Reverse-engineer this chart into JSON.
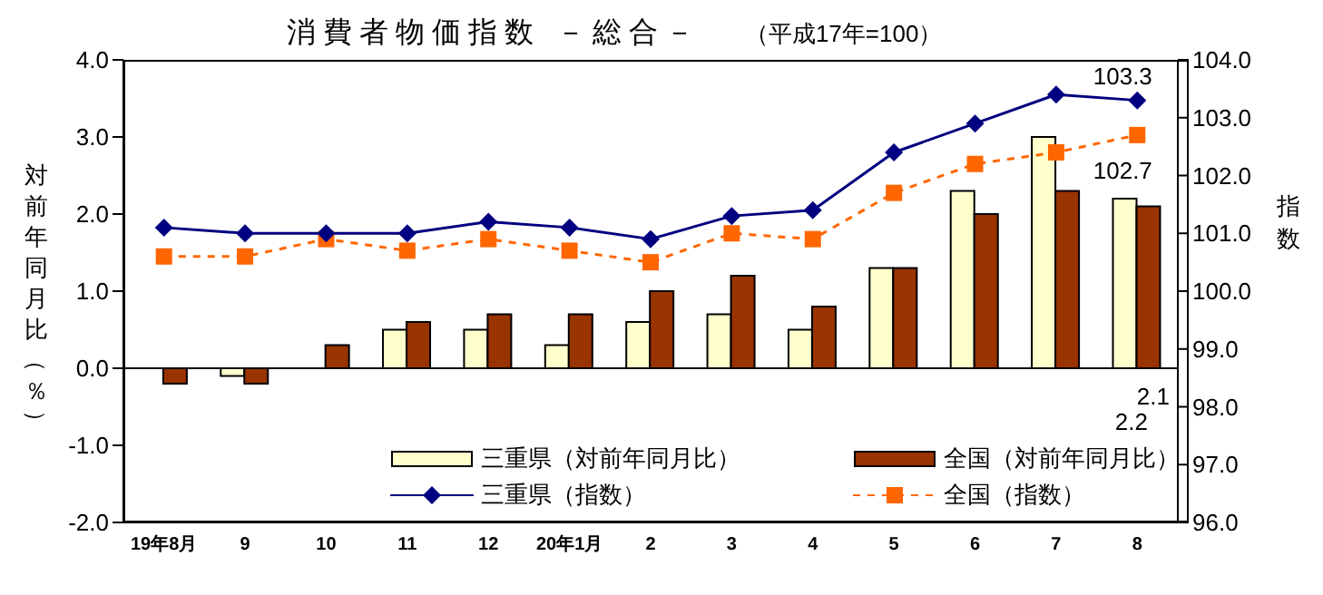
{
  "chart_data": {
    "type": "bar",
    "title": "消費者物価指数 －総合－",
    "subtitle": "（平成17年=100）",
    "ylabel": "対前年同月比（％）",
    "y2label": "指数",
    "categories": [
      "19年8月",
      "9",
      "10",
      "11",
      "12",
      "20年1月",
      "2",
      "3",
      "4",
      "5",
      "6",
      "7",
      "8"
    ],
    "series": [
      {
        "name": "三重県（対前年同月比）",
        "color": "#ffffcc",
        "values": [
          0.0,
          -0.1,
          0.0,
          0.5,
          0.5,
          0.3,
          0.6,
          0.7,
          0.5,
          1.3,
          2.3,
          3.0,
          2.2
        ],
        "value_labels": [
          null,
          null,
          null,
          null,
          null,
          null,
          null,
          null,
          null,
          null,
          null,
          null,
          "2.2"
        ]
      },
      {
        "name": "全国（対前年同月比）",
        "color": "#993300",
        "values": [
          -0.2,
          -0.2,
          0.3,
          0.6,
          0.7,
          0.7,
          1.0,
          1.2,
          0.8,
          1.3,
          2.0,
          2.3,
          2.1
        ],
        "value_labels": [
          null,
          null,
          null,
          null,
          null,
          null,
          null,
          null,
          null,
          null,
          null,
          null,
          "2.1"
        ]
      },
      {
        "name": "三重県（指数）",
        "type": "line",
        "axis": "y2",
        "color": "#000080",
        "marker": "diamond",
        "line_style": "solid",
        "values": [
          101.1,
          101.0,
          101.0,
          101.0,
          101.2,
          101.1,
          100.9,
          101.3,
          101.4,
          102.4,
          102.9,
          103.4,
          103.3
        ],
        "value_labels": [
          null,
          null,
          null,
          null,
          null,
          null,
          null,
          null,
          null,
          null,
          null,
          null,
          "103.3"
        ]
      },
      {
        "name": "全国（指数）",
        "type": "line",
        "axis": "y2",
        "color": "#ff6600",
        "marker": "square",
        "line_style": "dashed",
        "values": [
          100.6,
          100.6,
          100.9,
          100.7,
          100.9,
          100.7,
          100.5,
          101.0,
          100.9,
          101.7,
          102.2,
          102.4,
          102.7
        ],
        "value_labels": [
          null,
          null,
          null,
          null,
          null,
          null,
          null,
          null,
          null,
          null,
          null,
          null,
          "102.7"
        ]
      }
    ],
    "ylim": [
      -2,
      4
    ],
    "yticks": [
      {
        "value": -2,
        "label": "-2.0"
      },
      {
        "value": -1,
        "label": "-1.0"
      },
      {
        "value": 0,
        "label": "0.0"
      },
      {
        "value": 1,
        "label": "1.0"
      },
      {
        "value": 2,
        "label": "2.0"
      },
      {
        "value": 3,
        "label": "3.0"
      },
      {
        "value": 4,
        "label": "4.0"
      }
    ],
    "y2lim": [
      96,
      104
    ],
    "y2ticks": [
      {
        "value": 96,
        "label": "96.0"
      },
      {
        "value": 97,
        "label": "97.0"
      },
      {
        "value": 98,
        "label": "98.0"
      },
      {
        "value": 99,
        "label": "99.0"
      },
      {
        "value": 100,
        "label": "100.0"
      },
      {
        "value": 101,
        "label": "101.0"
      },
      {
        "value": 102,
        "label": "102.0"
      },
      {
        "value": 103,
        "label": "103.0"
      },
      {
        "value": 104,
        "label": "104.0"
      }
    ],
    "ref_lines": [
      {
        "axis": "y",
        "value": 0,
        "color": "#000000"
      }
    ],
    "grid": false,
    "legend": "bottom right"
  }
}
